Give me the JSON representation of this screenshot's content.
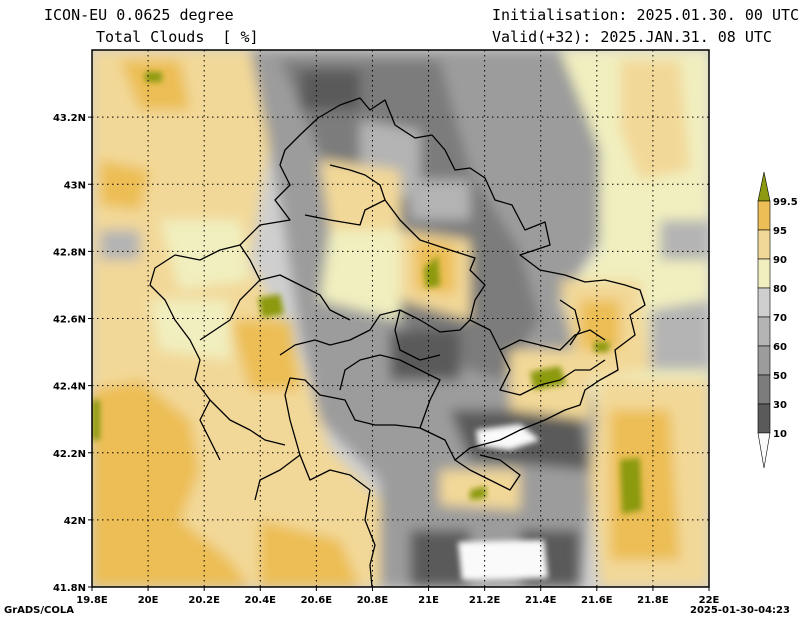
{
  "header": {
    "model": "ICON-EU 0.0625 degree",
    "variable": "Total Clouds  [ %]",
    "init": "Initialisation: 2025.01.30. 00 UTC",
    "valid": "Valid(+32): 2025.JAN.31. 08 UTC"
  },
  "axes": {
    "lon_ticks": [
      "19.8E",
      "20E",
      "20.2E",
      "20.4E",
      "20.6E",
      "20.8E",
      "21E",
      "21.2E",
      "21.4E",
      "21.6E",
      "21.8E",
      "22E"
    ],
    "lat_ticks": [
      "43.2N",
      "43N",
      "42.8N",
      "42.6N",
      "42.4N",
      "42.2N",
      "42N",
      "41.8N"
    ],
    "lon_range": [
      19.8,
      22.0
    ],
    "lat_range": [
      41.8,
      43.4
    ]
  },
  "legend": {
    "levels": [
      "99.5",
      "95",
      "90",
      "80",
      "70",
      "60",
      "50",
      "30",
      "10"
    ],
    "colors": {
      "lt10": "#fafafa",
      "c10_30": "#5a5a5a",
      "c30_50": "#7c7c7c",
      "c50_60": "#9c9c9c",
      "c60_70": "#b4b4b4",
      "c70_80": "#cfcfcf",
      "c80_90": "#f1efbf",
      "c90_95": "#f2d898",
      "c95_99": "#ecbe55",
      "gt99": "#8c9a10"
    }
  },
  "footer": {
    "left": "GrADS/COLA",
    "right": "2025-01-30-04:23"
  }
}
